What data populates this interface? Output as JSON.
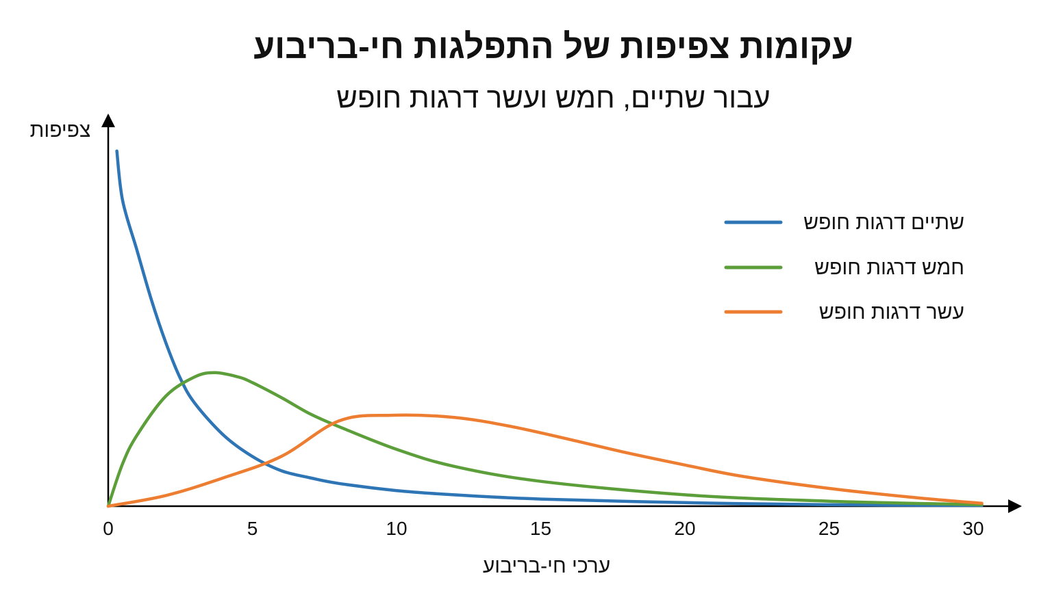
{
  "chart_data": {
    "type": "line",
    "title": "עקומות צפיפות של התפלגות חי-בריבוע",
    "subtitle": "עבור שתיים, חמש ועשר דרגות חופש",
    "xlabel": "ערכי חי-בריבוע",
    "ylabel": "צפיפות",
    "xlim": [
      0,
      31.5
    ],
    "ylim": [
      0,
      0.52
    ],
    "xticks": [
      0,
      5,
      10,
      15,
      20,
      25,
      30
    ],
    "grid": false,
    "legend_position": "top-right",
    "series": [
      {
        "name": "שתיים דרגות חופש",
        "color": "#2e75b6",
        "x": [
          0.3,
          0.5,
          1,
          1.5,
          2,
          2.5,
          3,
          4,
          5,
          6,
          7,
          8,
          10,
          12,
          15,
          20,
          25,
          30.3
        ],
        "y": [
          0.5,
          0.43,
          0.36,
          0.29,
          0.23,
          0.18,
          0.145,
          0.1,
          0.07,
          0.05,
          0.04,
          0.032,
          0.022,
          0.016,
          0.01,
          0.005,
          0.002,
          0.001
        ]
      },
      {
        "name": "חמש דרגות חופש",
        "color": "#5b9e3a",
        "x": [
          0,
          0.5,
          1,
          2,
          3,
          3.7,
          4.5,
          5,
          6,
          7,
          8,
          10,
          12,
          15,
          20,
          25,
          30.3
        ],
        "y": [
          0,
          0.06,
          0.1,
          0.155,
          0.182,
          0.188,
          0.182,
          0.174,
          0.153,
          0.13,
          0.112,
          0.08,
          0.056,
          0.035,
          0.016,
          0.007,
          0.002
        ]
      },
      {
        "name": "עשר דרגות חופש",
        "color": "#ed7d31",
        "x": [
          0,
          2,
          4,
          6,
          8,
          9.8,
          12,
          14,
          16,
          18,
          20,
          22,
          25,
          28,
          30.3
        ],
        "y": [
          0,
          0.015,
          0.04,
          0.07,
          0.12,
          0.128,
          0.125,
          0.112,
          0.094,
          0.075,
          0.058,
          0.042,
          0.025,
          0.012,
          0.004
        ]
      }
    ]
  }
}
